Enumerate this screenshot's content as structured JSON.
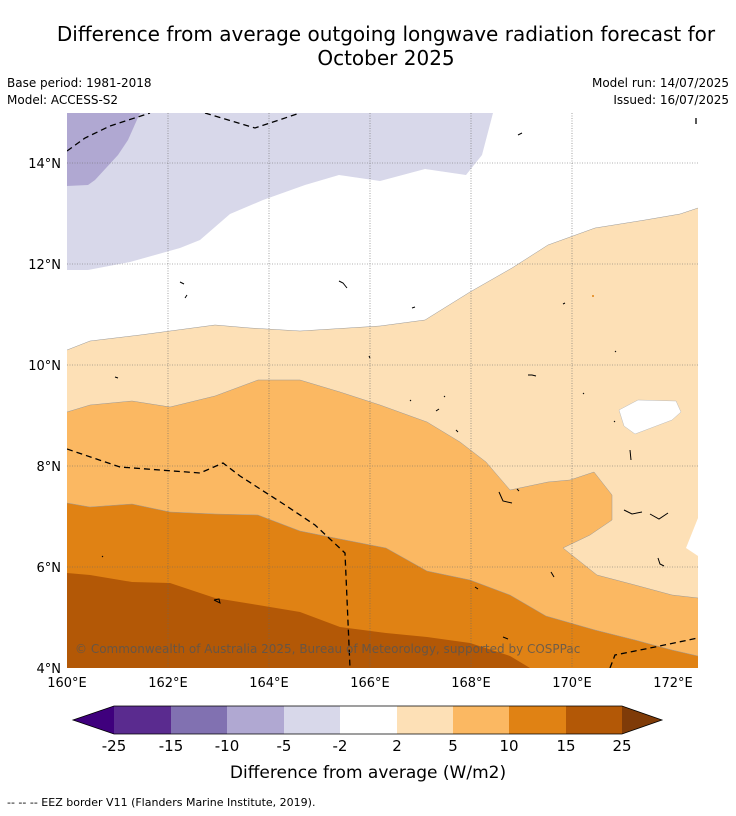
{
  "header": {
    "title_line1": "Difference from average outgoing longwave radiation forecast for",
    "title_line2": "October 2025",
    "base_period": "Base period: 1981-2018",
    "model": "Model: ACCESS-S2",
    "model_run": "Model run: 14/07/2025",
    "issued": "Issued: 16/07/2025"
  },
  "map": {
    "lon_ticks": [
      "160°E",
      "162°E",
      "164°E",
      "166°E",
      "168°E",
      "170°E",
      "172°E"
    ],
    "lat_ticks": [
      "14°N",
      "12°N",
      "10°N",
      "8°N",
      "6°N",
      "4°N"
    ],
    "copyright": "© Commonwealth of Australia 2025, Bureau of Meteorology, supported by COSPPac"
  },
  "colorbar": {
    "labels": [
      "-25",
      "-15",
      "-10",
      "-5",
      "-2",
      "2",
      "5",
      "10",
      "15",
      "25"
    ],
    "colors": [
      "#3f007d",
      "#5a2b8f",
      "#8171b1",
      "#b0a8d2",
      "#d8d8ea",
      "#ffffff",
      "#fde0b6",
      "#fbb862",
      "#e08214",
      "#b35806",
      "#7f3b08"
    ],
    "title": "Difference from average (W/m2)"
  },
  "footer": {
    "legend_text": "--  --  -- EEZ border V11 (Flanders Marine Institute, 2019)."
  }
}
